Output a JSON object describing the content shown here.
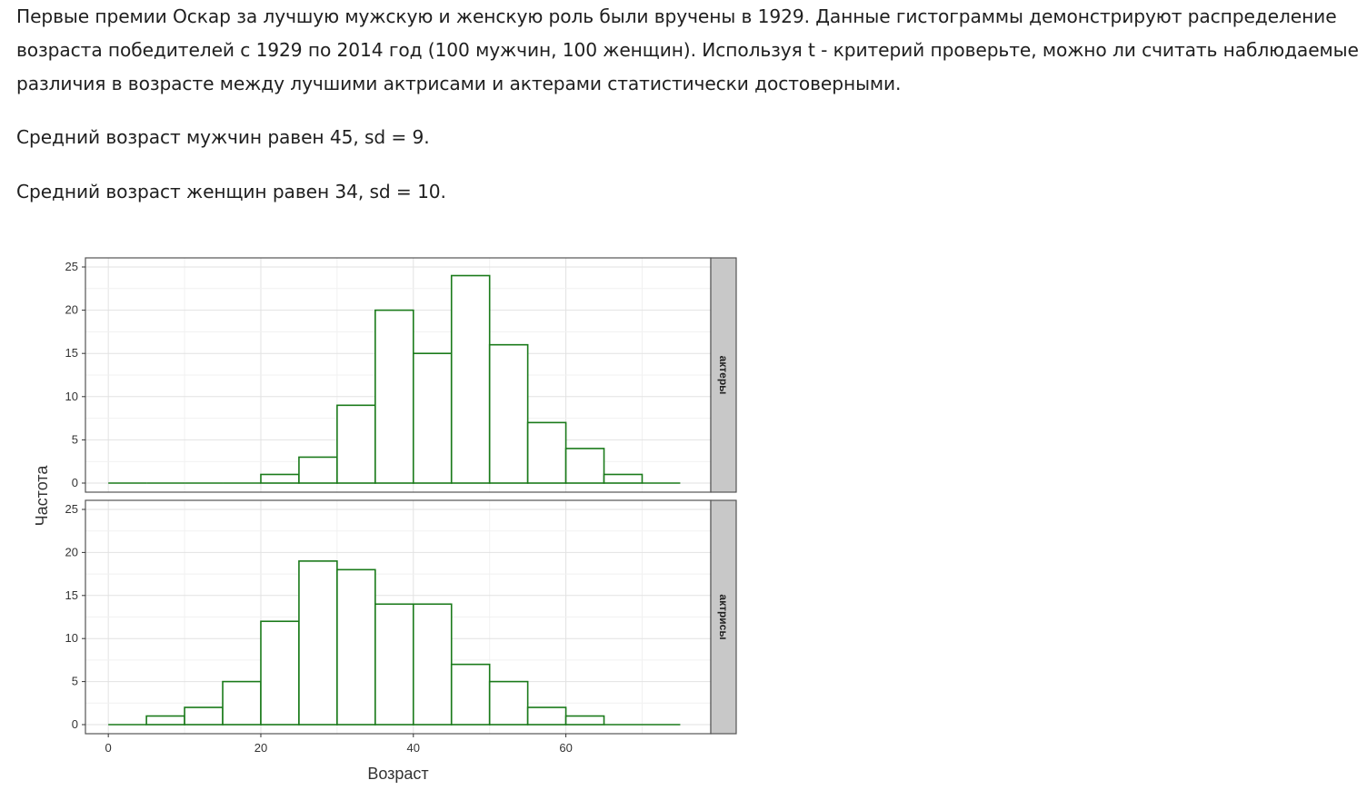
{
  "problem": {
    "paragraph1": "Первые премии Оскар за лучшую мужскую и женскую роль были вручены в 1929. Данные гистограммы демонстрируют распределение возраста победителей с 1929 по 2014 год (100 мужчин, 100 женщин). Используя t - критерий проверьте, можно ли считать наблюдаемые различия в возрасте между лучшими актрисами и актерами статистически достоверными.",
    "paragraph2": "Средний возраст мужчин равен 45, sd = 9.",
    "paragraph3": "Средний возраст женщин равен 34, sd = 10."
  },
  "chart_data": {
    "type": "bar",
    "xlabel": "Возраст",
    "ylabel": "Частота",
    "xlim": [
      -3,
      79
    ],
    "ylim": [
      0,
      25
    ],
    "x_ticks": [
      0,
      20,
      40,
      60
    ],
    "y_ticks": [
      0,
      5,
      10,
      15,
      20,
      25
    ],
    "grid": true,
    "bin_width": 5,
    "bar_color": "#1a7a1a",
    "strip_color": "#c8c8c8",
    "bin_starts": [
      0,
      5,
      10,
      15,
      20,
      25,
      30,
      35,
      40,
      45,
      50,
      55,
      60,
      65,
      70
    ],
    "series": [
      {
        "name": "актеры",
        "values": [
          0,
          0,
          0,
          0,
          1,
          3,
          9,
          20,
          15,
          24,
          16,
          7,
          4,
          1,
          0
        ]
      },
      {
        "name": "актрисы",
        "values": [
          0,
          1,
          2,
          5,
          12,
          19,
          18,
          14,
          14,
          7,
          5,
          2,
          1,
          0,
          0
        ]
      }
    ]
  }
}
